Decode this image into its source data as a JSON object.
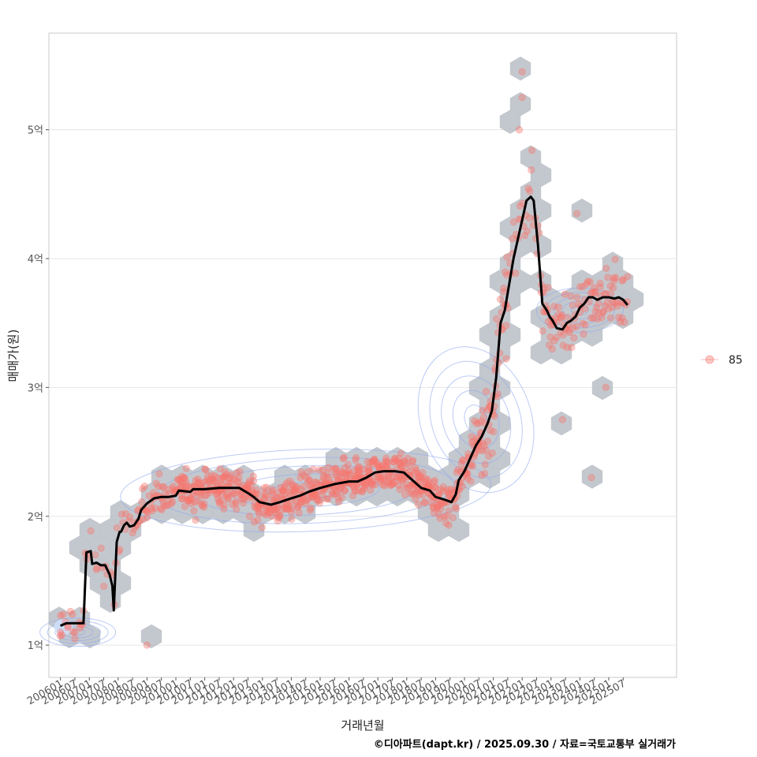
{
  "chart_data": {
    "type": "scatter",
    "title": "",
    "xlabel": "거래년월",
    "ylabel": "매매가(원)",
    "caption": "©디아파트(dapt.kr) / 2025.09.30 / 자료=국토교통부 실거래가",
    "legend": {
      "label": "85",
      "position": "right"
    },
    "colors": {
      "points": "#f8766d",
      "hex": "#b8bec6",
      "contour": "#8fa8f0",
      "trend": "#000000",
      "grid": "#e6e6e6",
      "border": "#c8c8c8"
    },
    "ylim": [
      0.75,
      5.75
    ],
    "y_ticks": [
      {
        "value": 1,
        "label": "1억"
      },
      {
        "value": 2,
        "label": "2억"
      },
      {
        "value": 3,
        "label": "3억"
      },
      {
        "value": 4,
        "label": "4억"
      },
      {
        "value": 5,
        "label": "5억"
      }
    ],
    "x_range_months": [
      2005.6,
      2027.35
    ],
    "x_ticks": [
      "200601",
      "200607",
      "200701",
      "200707",
      "200801",
      "200807",
      "200901",
      "200907",
      "201001",
      "201007",
      "201101",
      "201107",
      "201201",
      "201207",
      "201301",
      "201307",
      "201401",
      "201407",
      "201501",
      "201507",
      "201601",
      "201607",
      "201701",
      "201707",
      "201801",
      "201807",
      "201901",
      "201907",
      "202001",
      "202007",
      "202101",
      "202107",
      "202201",
      "202207",
      "202301",
      "202307",
      "202401",
      "202407",
      "202501",
      "202507"
    ],
    "trend_line": [
      [
        2006.0,
        1.15
      ],
      [
        2006.2,
        1.17
      ],
      [
        2006.7,
        1.17
      ],
      [
        2006.8,
        1.17
      ],
      [
        2006.9,
        1.72
      ],
      [
        2007.05,
        1.73
      ],
      [
        2007.1,
        1.63
      ],
      [
        2007.25,
        1.64
      ],
      [
        2007.4,
        1.62
      ],
      [
        2007.55,
        1.62
      ],
      [
        2007.7,
        1.55
      ],
      [
        2007.8,
        1.46
      ],
      [
        2007.85,
        1.27
      ],
      [
        2007.95,
        1.8
      ],
      [
        2008.05,
        1.88
      ],
      [
        2008.1,
        1.88
      ],
      [
        2008.2,
        1.93
      ],
      [
        2008.3,
        1.95
      ],
      [
        2008.4,
        1.92
      ],
      [
        2008.55,
        1.93
      ],
      [
        2008.7,
        1.98
      ],
      [
        2008.8,
        2.05
      ],
      [
        2009.0,
        2.1
      ],
      [
        2009.25,
        2.14
      ],
      [
        2009.5,
        2.15
      ],
      [
        2009.75,
        2.15
      ],
      [
        2010.0,
        2.16
      ],
      [
        2010.1,
        2.2
      ],
      [
        2010.5,
        2.19
      ],
      [
        2010.6,
        2.21
      ],
      [
        2011.0,
        2.21
      ],
      [
        2011.5,
        2.22
      ],
      [
        2012.0,
        2.22
      ],
      [
        2012.2,
        2.22
      ],
      [
        2012.5,
        2.18
      ],
      [
        2012.7,
        2.15
      ],
      [
        2012.9,
        2.11
      ],
      [
        2013.3,
        2.09
      ],
      [
        2013.6,
        2.11
      ],
      [
        2014.0,
        2.14
      ],
      [
        2014.3,
        2.16
      ],
      [
        2014.6,
        2.19
      ],
      [
        2015.0,
        2.22
      ],
      [
        2015.5,
        2.25
      ],
      [
        2016.0,
        2.27
      ],
      [
        2016.3,
        2.27
      ],
      [
        2016.6,
        2.3
      ],
      [
        2016.9,
        2.34
      ],
      [
        2017.2,
        2.35
      ],
      [
        2017.6,
        2.35
      ],
      [
        2017.9,
        2.34
      ],
      [
        2018.2,
        2.28
      ],
      [
        2018.5,
        2.22
      ],
      [
        2018.8,
        2.2
      ],
      [
        2019.0,
        2.15
      ],
      [
        2019.3,
        2.13
      ],
      [
        2019.55,
        2.11
      ],
      [
        2019.7,
        2.17
      ],
      [
        2019.8,
        2.28
      ],
      [
        2020.0,
        2.35
      ],
      [
        2020.2,
        2.45
      ],
      [
        2020.4,
        2.55
      ],
      [
        2020.6,
        2.62
      ],
      [
        2020.8,
        2.72
      ],
      [
        2020.95,
        2.82
      ],
      [
        2021.1,
        3.08
      ],
      [
        2021.25,
        3.5
      ],
      [
        2021.4,
        3.6
      ],
      [
        2021.55,
        3.8
      ],
      [
        2021.7,
        4.0
      ],
      [
        2021.85,
        4.15
      ],
      [
        2022.0,
        4.3
      ],
      [
        2022.15,
        4.45
      ],
      [
        2022.3,
        4.48
      ],
      [
        2022.4,
        4.45
      ],
      [
        2022.55,
        4.1
      ],
      [
        2022.7,
        3.65
      ],
      [
        2022.85,
        3.6
      ],
      [
        2022.95,
        3.55
      ],
      [
        2023.05,
        3.52
      ],
      [
        2023.2,
        3.46
      ],
      [
        2023.4,
        3.45
      ],
      [
        2023.55,
        3.5
      ],
      [
        2023.7,
        3.52
      ],
      [
        2023.85,
        3.55
      ],
      [
        2024.0,
        3.62
      ],
      [
        2024.15,
        3.65
      ],
      [
        2024.3,
        3.7
      ],
      [
        2024.45,
        3.7
      ],
      [
        2024.6,
        3.68
      ],
      [
        2024.8,
        3.7
      ],
      [
        2025.0,
        3.7
      ],
      [
        2025.2,
        3.69
      ],
      [
        2025.35,
        3.7
      ],
      [
        2025.5,
        3.68
      ],
      [
        2025.65,
        3.64
      ]
    ]
  }
}
